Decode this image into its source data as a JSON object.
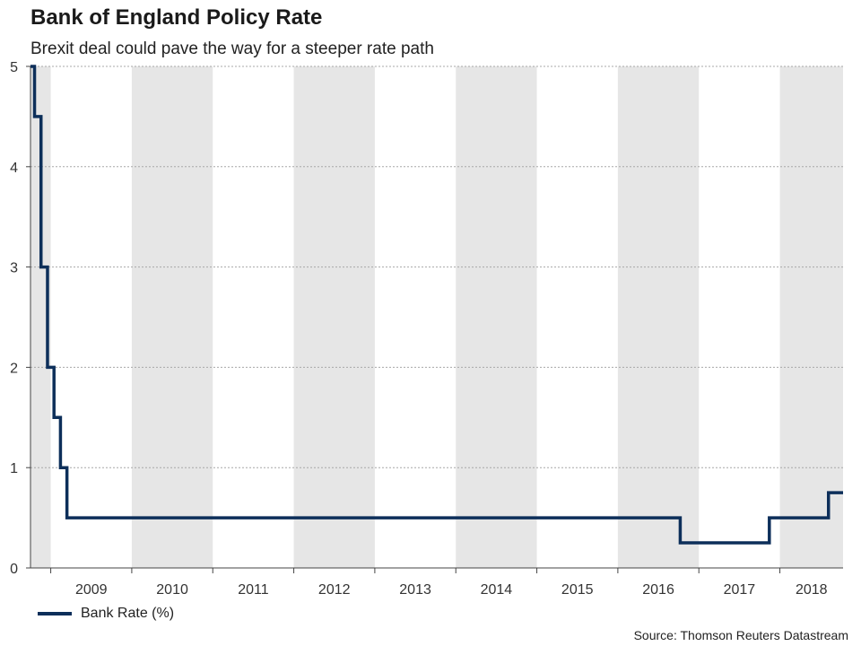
{
  "chart_data": {
    "type": "line",
    "title": "Bank of England Policy Rate",
    "subtitle": "Brexit deal could pave the way for a steeper rate path",
    "xlabel": "",
    "ylabel": "",
    "ylim": [
      0,
      5
    ],
    "xlim": [
      2008.25,
      2018.28
    ],
    "yticks": [
      0,
      1,
      2,
      3,
      4,
      5
    ],
    "ytick_labels": [
      "0",
      "1",
      "2",
      "3",
      "4",
      "5"
    ],
    "xtick_labels": [
      "2009",
      "2010",
      "2011",
      "2012",
      "2013",
      "2014",
      "2015",
      "2016",
      "2017",
      "2018"
    ],
    "year_bands": [
      {
        "start": 2008.25,
        "end": 2008.5,
        "shaded": true
      },
      {
        "start": 2008.5,
        "end": 2009.5,
        "shaded": false
      },
      {
        "start": 2009.5,
        "end": 2010.5,
        "shaded": true
      },
      {
        "start": 2010.5,
        "end": 2011.5,
        "shaded": false
      },
      {
        "start": 2011.5,
        "end": 2012.5,
        "shaded": true
      },
      {
        "start": 2012.5,
        "end": 2013.5,
        "shaded": false
      },
      {
        "start": 2013.5,
        "end": 2014.5,
        "shaded": true
      },
      {
        "start": 2014.5,
        "end": 2015.5,
        "shaded": false
      },
      {
        "start": 2015.5,
        "end": 2016.5,
        "shaded": true
      },
      {
        "start": 2016.5,
        "end": 2017.5,
        "shaded": false
      },
      {
        "start": 2017.5,
        "end": 2018.28,
        "shaded": true
      }
    ],
    "grid": true,
    "legend_position": "bottom-left",
    "series": [
      {
        "name": "Bank Rate (%)",
        "color": "#0d2f5a",
        "step": true,
        "points": [
          {
            "x": 2008.25,
            "y": 5.0
          },
          {
            "x": 2008.3,
            "y": 4.5
          },
          {
            "x": 2008.38,
            "y": 3.0
          },
          {
            "x": 2008.46,
            "y": 2.0
          },
          {
            "x": 2008.54,
            "y": 1.5
          },
          {
            "x": 2008.62,
            "y": 1.0
          },
          {
            "x": 2008.7,
            "y": 0.5
          },
          {
            "x": 2016.27,
            "y": 0.25
          },
          {
            "x": 2017.37,
            "y": 0.5
          },
          {
            "x": 2018.1,
            "y": 0.75
          },
          {
            "x": 2018.28,
            "y": 0.75
          }
        ]
      }
    ]
  },
  "source": "Source: Thomson Reuters Datastream"
}
